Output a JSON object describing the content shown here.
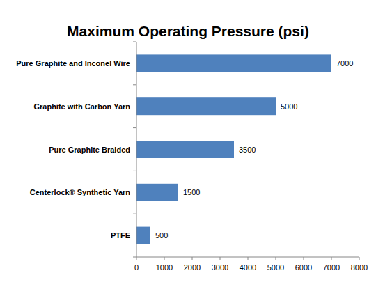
{
  "chart_data": {
    "type": "bar",
    "title": "Maximum Operating Pressure (psi)",
    "orientation": "horizontal",
    "categories": [
      "Pure Graphite and Inconel Wire",
      "Graphite with Carbon Yarn",
      "Pure Graphite Braided",
      "Centerlock® Synthetic Yarn",
      "PTFE"
    ],
    "values": [
      7000,
      5000,
      3500,
      1500,
      500
    ],
    "color": "#4f81bd",
    "xlim": [
      0,
      8000
    ],
    "xticks": [
      0,
      1000,
      2000,
      3000,
      4000,
      5000,
      6000,
      7000,
      8000
    ],
    "grid": false,
    "data_labels": true
  }
}
